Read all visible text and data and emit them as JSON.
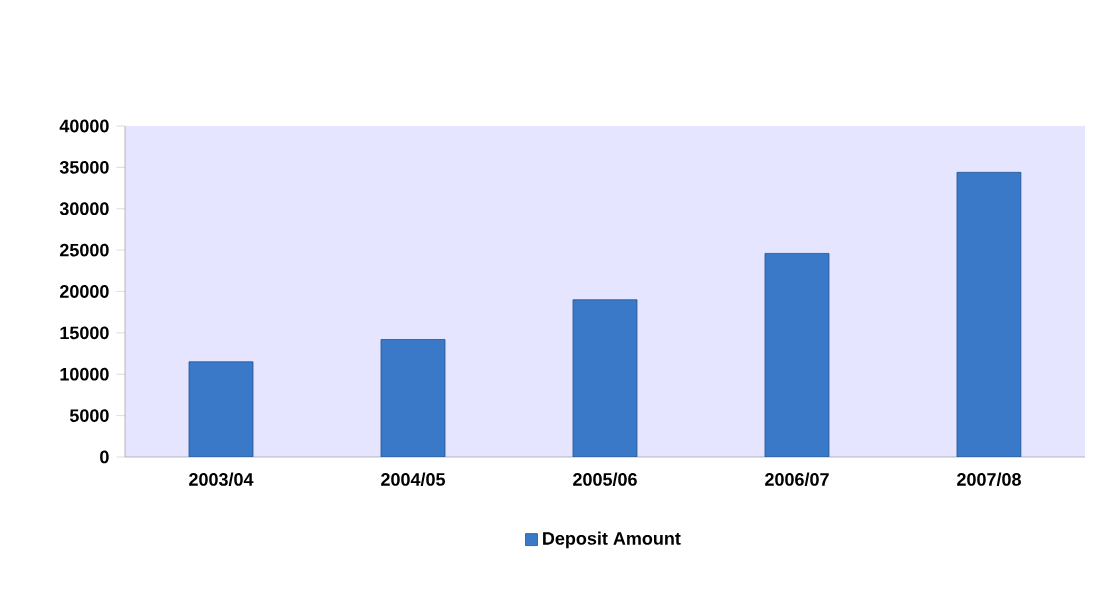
{
  "chart_data": {
    "type": "bar",
    "categories": [
      "2003/04",
      "2004/05",
      "2005/06",
      "2006/07",
      "2007/08"
    ],
    "series": [
      {
        "name": "Deposit Amount",
        "color": "#3a78c8",
        "values": [
          11500,
          14200,
          19000,
          24600,
          34400
        ]
      }
    ],
    "ylim": [
      0,
      40000
    ],
    "yticks": [
      0,
      5000,
      10000,
      15000,
      20000,
      25000,
      30000,
      35000,
      40000
    ],
    "grid": false,
    "legend": "bottom"
  }
}
